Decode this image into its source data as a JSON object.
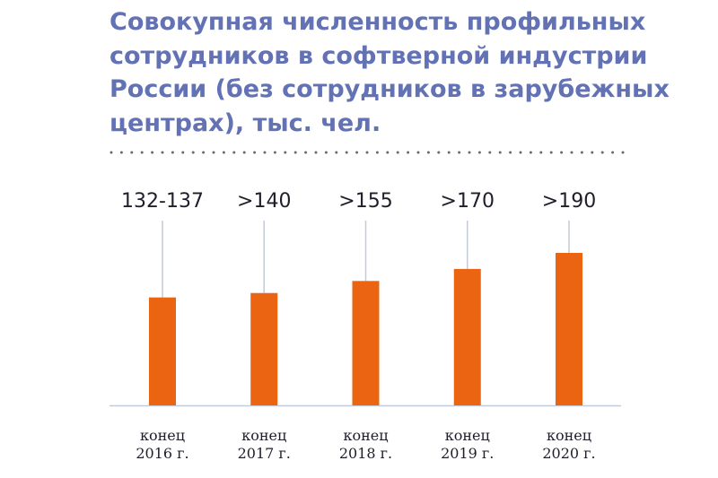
{
  "title_lines": [
    "Совокупная численность профильных",
    "сотрудников в софтверной индустрии",
    "России (без сотрудников в зарубежных",
    "центрах), тыс. чел."
  ],
  "colors": {
    "title": "#6272b4",
    "bar": "#eb6411",
    "guide": "#c3cad8",
    "axis": "#c3cad8",
    "dots": "#6b6b6b",
    "text": "#1f1f2b"
  },
  "chart_data": {
    "type": "bar",
    "title": "Совокупная численность профильных сотрудников в софтверной индустрии России (без сотрудников в зарубежных центрах), тыс. чел.",
    "categories": [
      [
        "конец",
        "2016 г."
      ],
      [
        "конец",
        "2017 г."
      ],
      [
        "конец",
        "2018 г."
      ],
      [
        "конец",
        "2019 г."
      ],
      [
        "конец",
        "2020 г."
      ]
    ],
    "values": [
      134.5,
      140,
      155,
      170,
      190
    ],
    "value_labels": [
      "132-137",
      ">140",
      ">155",
      ">170",
      ">190"
    ],
    "ylim": [
      0,
      190
    ],
    "grid": false,
    "legend": "none"
  }
}
